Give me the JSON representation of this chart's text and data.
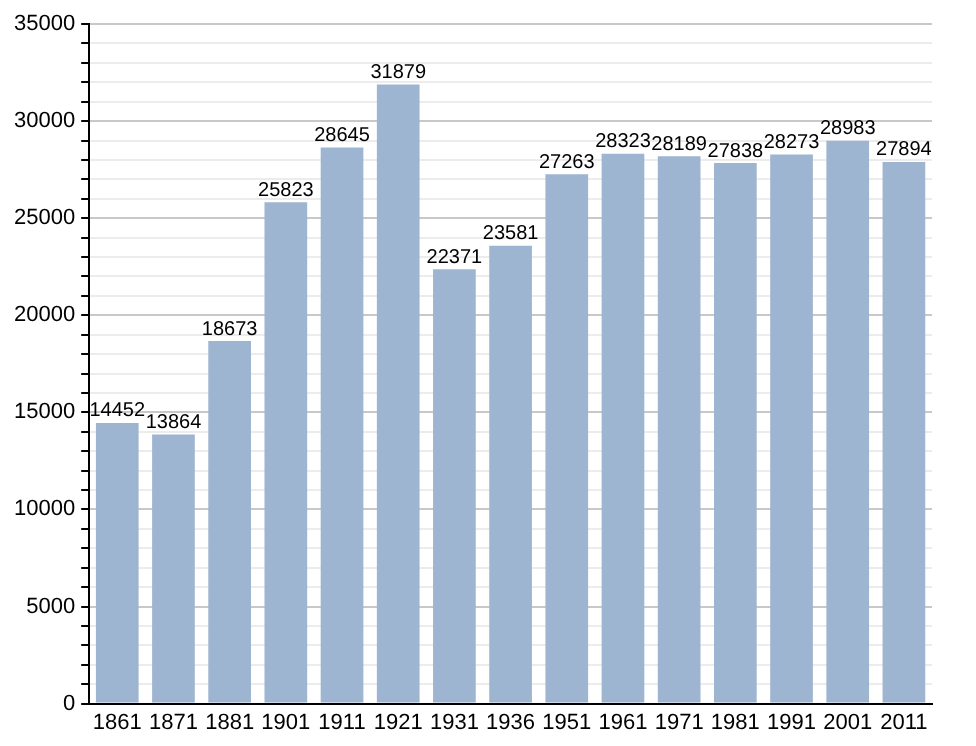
{
  "chart_data": {
    "type": "bar",
    "categories": [
      "1861",
      "1871",
      "1881",
      "1901",
      "1911",
      "1921",
      "1931",
      "1936",
      "1951",
      "1961",
      "1971",
      "1981",
      "1991",
      "2001",
      "2011"
    ],
    "values": [
      14452,
      13864,
      18673,
      25823,
      28645,
      31879,
      22371,
      23581,
      27263,
      28323,
      28189,
      27838,
      28273,
      28983,
      27894
    ],
    "color": "#9eb5d1",
    "ylim": [
      0,
      35000
    ],
    "yticks": [
      0,
      {
        "value": 1000,
        "label": null
      },
      {
        "value": 2000,
        "label": null
      },
      {
        "value": 3000,
        "label": null
      },
      {
        "value": 4000,
        "label": null
      },
      5000,
      {
        "value": 6000,
        "label": null
      },
      {
        "value": 7000,
        "label": null
      },
      {
        "value": 8000,
        "label": null
      },
      {
        "value": 9000,
        "label": null
      },
      10000,
      {
        "value": 11000,
        "label": null
      },
      {
        "value": 12000,
        "label": null
      },
      {
        "value": 13000,
        "label": null
      },
      {
        "value": 14000,
        "label": null
      },
      15000,
      {
        "value": 16000,
        "label": null
      },
      {
        "value": 17000,
        "label": null
      },
      {
        "value": 18000,
        "label": null
      },
      {
        "value": 19000,
        "label": null
      },
      20000,
      {
        "value": 21000,
        "label": null
      },
      {
        "value": 22000,
        "label": null
      },
      {
        "value": 23000,
        "label": null
      },
      {
        "value": 24000,
        "label": null
      },
      25000,
      {
        "value": 26000,
        "label": null
      },
      {
        "value": 27000,
        "label": null
      },
      {
        "value": 28000,
        "label": null
      },
      {
        "value": 29000,
        "label": null
      },
      30000,
      {
        "value": 31000,
        "label": null
      },
      {
        "value": 32000,
        "label": null
      },
      {
        "value": 33000,
        "label": null
      },
      {
        "value": 34000,
        "label": null
      },
      35000
    ],
    "grid": "y",
    "data_labels": true
  }
}
